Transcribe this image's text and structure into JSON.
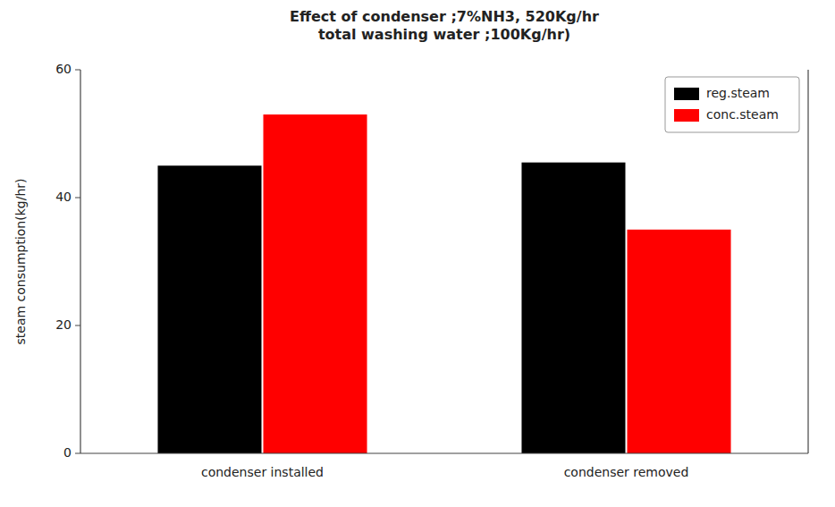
{
  "chart_data": {
    "type": "bar",
    "title": "Effect of condenser ;7%NH3, 520Kg/hr\ntotal washing water ;100Kg/hr)",
    "ylabel": "steam consumption(kg/hr)",
    "categories": [
      "condenser installed",
      "condenser removed"
    ],
    "series": [
      {
        "name": "reg.steam",
        "color": "#000000",
        "values": [
          45,
          45.5
        ]
      },
      {
        "name": "conc.steam",
        "color": "#ff0000",
        "values": [
          53,
          35
        ]
      }
    ],
    "ylim": [
      0,
      60
    ],
    "yticks": [
      0,
      20,
      40,
      60
    ],
    "grid": false,
    "legend": "upper right"
  }
}
